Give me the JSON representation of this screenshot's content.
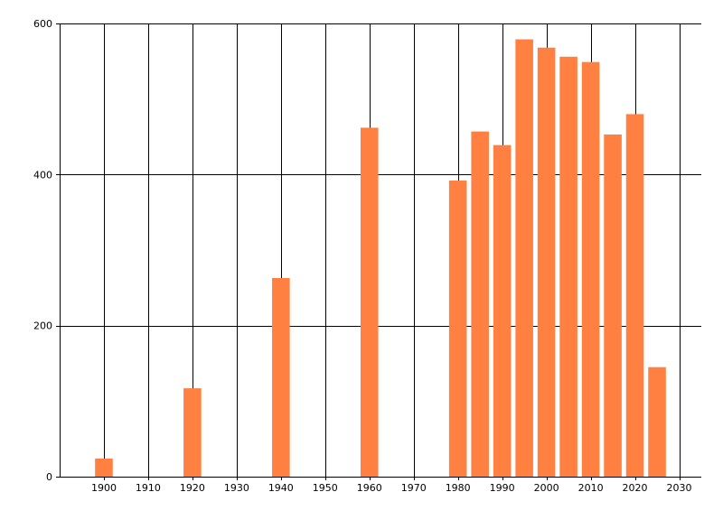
{
  "chart_data": {
    "type": "bar",
    "title": "",
    "xlabel": "",
    "ylabel": "",
    "x": [
      1900,
      1920,
      1940,
      1960,
      1980,
      1985,
      1990,
      1995,
      2000,
      2005,
      2010,
      2015,
      2020,
      2025
    ],
    "values": [
      24,
      117,
      263,
      462,
      392,
      457,
      439,
      579,
      568,
      556,
      549,
      453,
      480,
      145
    ],
    "xlim": [
      1890,
      2035
    ],
    "ylim": [
      0,
      600
    ],
    "xticks": [
      1900,
      1910,
      1920,
      1930,
      1940,
      1950,
      1960,
      1970,
      1980,
      1990,
      2000,
      2010,
      2020,
      2030
    ],
    "yticks": [
      0,
      200,
      400,
      600
    ],
    "grid": true,
    "legend": "none",
    "bar_color": "#ff8040",
    "grid_color": "#000000"
  }
}
